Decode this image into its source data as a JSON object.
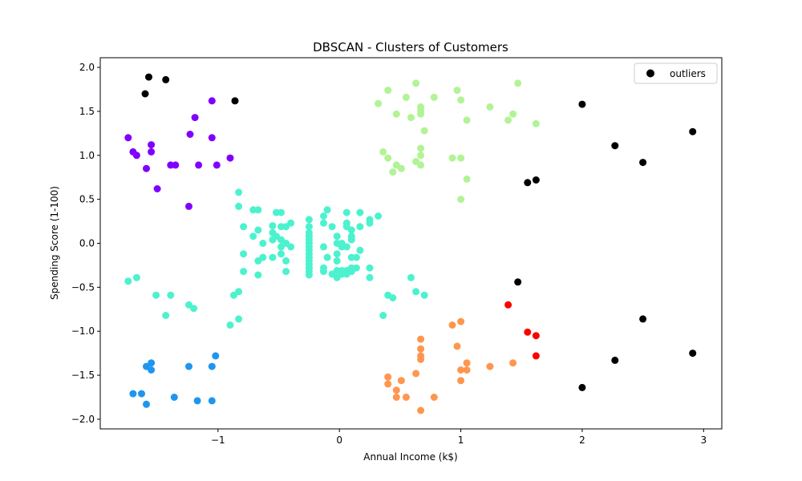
{
  "chart_data": {
    "type": "scatter",
    "title": "DBSCAN - Clusters of Customers",
    "xlabel": "Annual Income (k$)",
    "ylabel": "Spending Score (1-100)",
    "xlim": [
      -1.97,
      3.15
    ],
    "ylim": [
      -2.11,
      2.11
    ],
    "xticks": [
      -1,
      0,
      1,
      2,
      3
    ],
    "xtick_labels": [
      "−1",
      "0",
      "1",
      "2",
      "3"
    ],
    "yticks": [
      -2.0,
      -1.5,
      -1.0,
      -0.5,
      0.0,
      0.5,
      1.0,
      1.5,
      2.0
    ],
    "ytick_labels": [
      "−2.0",
      "−1.5",
      "−1.0",
      "−0.5",
      "0.0",
      "0.5",
      "1.0",
      "1.5",
      "2.0"
    ],
    "grid": false,
    "legend_position": "top-right",
    "legend": [
      "outliers"
    ],
    "series": [
      {
        "name": "outliers",
        "color": "#000000",
        "points": [
          [
            -1.6,
            1.7
          ],
          [
            -1.57,
            1.89
          ],
          [
            -1.43,
            1.86
          ],
          [
            -0.86,
            1.62
          ],
          [
            2.0,
            1.58
          ],
          [
            2.27,
            1.11
          ],
          [
            2.5,
            0.92
          ],
          [
            2.91,
            1.27
          ],
          [
            1.55,
            0.69
          ],
          [
            1.62,
            0.72
          ],
          [
            1.47,
            -0.44
          ],
          [
            2.5,
            -0.86
          ],
          [
            2.91,
            -1.25
          ],
          [
            2.27,
            -1.33
          ],
          [
            2.0,
            -1.64
          ]
        ]
      },
      {
        "color": "#8000ff",
        "points": [
          [
            -1.74,
            1.2
          ],
          [
            -1.7,
            1.04
          ],
          [
            -1.67,
            1.0
          ],
          [
            -1.55,
            1.12
          ],
          [
            -1.55,
            1.04
          ],
          [
            -1.59,
            0.85
          ],
          [
            -1.5,
            0.62
          ],
          [
            -1.39,
            0.89
          ],
          [
            -1.35,
            0.89
          ],
          [
            -1.23,
            1.24
          ],
          [
            -1.19,
            1.43
          ],
          [
            -1.16,
            0.89
          ],
          [
            -1.05,
            1.62
          ],
          [
            -1.05,
            1.2
          ],
          [
            -1.01,
            0.89
          ],
          [
            -0.9,
            0.97
          ],
          [
            -1.24,
            0.42
          ]
        ]
      },
      {
        "color": "#1e96f0",
        "points": [
          [
            -1.7,
            -1.71
          ],
          [
            -1.63,
            -1.71
          ],
          [
            -1.59,
            -1.83
          ],
          [
            -1.59,
            -1.4
          ],
          [
            -1.55,
            -1.36
          ],
          [
            -1.55,
            -1.44
          ],
          [
            -1.36,
            -1.75
          ],
          [
            -1.24,
            -1.4
          ],
          [
            -1.17,
            -1.79
          ],
          [
            -1.05,
            -1.4
          ],
          [
            -1.05,
            -1.79
          ],
          [
            -1.02,
            -1.28
          ]
        ]
      },
      {
        "color": "#4cf2ce",
        "points": [
          [
            -1.74,
            -0.43
          ],
          [
            -1.67,
            -0.39
          ],
          [
            -1.51,
            -0.59
          ],
          [
            -1.43,
            -0.82
          ],
          [
            -1.39,
            -0.59
          ],
          [
            -1.24,
            -0.7
          ],
          [
            -1.2,
            -0.74
          ],
          [
            -0.9,
            -0.93
          ],
          [
            -0.87,
            -0.59
          ],
          [
            -0.83,
            -0.55
          ],
          [
            -0.83,
            -0.86
          ],
          [
            -0.83,
            0.58
          ],
          [
            -0.83,
            0.42
          ],
          [
            -0.79,
            0.19
          ],
          [
            -0.79,
            -0.12
          ],
          [
            -0.79,
            -0.32
          ],
          [
            -0.71,
            0.38
          ],
          [
            -0.71,
            0.08
          ],
          [
            -0.67,
            0.38
          ],
          [
            -0.67,
            0.15
          ],
          [
            -0.67,
            -0.2
          ],
          [
            -0.67,
            -0.36
          ],
          [
            -0.63,
            0.0
          ],
          [
            -0.63,
            -0.16
          ],
          [
            -0.55,
            0.2
          ],
          [
            -0.55,
            0.12
          ],
          [
            -0.55,
            0.04
          ],
          [
            -0.55,
            -0.16
          ],
          [
            -0.52,
            0.35
          ],
          [
            -0.52,
            0.08
          ],
          [
            -0.48,
            0.35
          ],
          [
            -0.48,
            0.19
          ],
          [
            -0.48,
            0.04
          ],
          [
            -0.48,
            -0.04
          ],
          [
            -0.48,
            -0.12
          ],
          [
            -0.44,
            0.19
          ],
          [
            -0.44,
            0.0
          ],
          [
            -0.44,
            -0.2
          ],
          [
            -0.44,
            -0.32
          ],
          [
            -0.4,
            0.23
          ],
          [
            -0.4,
            -0.04
          ],
          [
            -0.25,
            0.27
          ],
          [
            -0.25,
            0.19
          ],
          [
            -0.25,
            0.12
          ],
          [
            -0.25,
            0.08
          ],
          [
            -0.25,
            0.04
          ],
          [
            -0.25,
            0.0
          ],
          [
            -0.25,
            -0.04
          ],
          [
            -0.25,
            -0.08
          ],
          [
            -0.25,
            -0.12
          ],
          [
            -0.25,
            -0.16
          ],
          [
            -0.25,
            -0.2
          ],
          [
            -0.25,
            -0.24
          ],
          [
            -0.25,
            -0.28
          ],
          [
            -0.25,
            -0.32
          ],
          [
            -0.25,
            -0.36
          ],
          [
            -0.13,
            0.31
          ],
          [
            -0.13,
            0.23
          ],
          [
            -0.13,
            -0.04
          ],
          [
            -0.13,
            -0.28
          ],
          [
            -0.13,
            -0.32
          ],
          [
            -0.1,
            0.38
          ],
          [
            -0.1,
            -0.16
          ],
          [
            -0.06,
            0.19
          ],
          [
            -0.06,
            -0.35
          ],
          [
            -0.02,
            0.08
          ],
          [
            -0.02,
            0.0
          ],
          [
            -0.02,
            -0.12
          ],
          [
            -0.02,
            -0.2
          ],
          [
            -0.02,
            -0.31
          ],
          [
            -0.02,
            -0.39
          ],
          [
            0.02,
            0.0
          ],
          [
            0.02,
            -0.04
          ],
          [
            0.02,
            -0.31
          ],
          [
            0.02,
            -0.35
          ],
          [
            0.06,
            0.35
          ],
          [
            0.06,
            0.23
          ],
          [
            0.06,
            0.19
          ],
          [
            0.06,
            -0.04
          ],
          [
            0.06,
            -0.31
          ],
          [
            0.06,
            -0.35
          ],
          [
            0.1,
            0.15
          ],
          [
            0.1,
            0.08
          ],
          [
            0.1,
            0.04
          ],
          [
            0.1,
            -0.16
          ],
          [
            0.1,
            -0.28
          ],
          [
            0.1,
            -0.32
          ],
          [
            0.14,
            -0.16
          ],
          [
            0.14,
            -0.28
          ],
          [
            0.17,
            0.35
          ],
          [
            0.17,
            0.19
          ],
          [
            0.17,
            -0.08
          ],
          [
            0.25,
            0.27
          ],
          [
            0.25,
            0.23
          ],
          [
            0.25,
            -0.28
          ],
          [
            0.25,
            -0.39
          ],
          [
            0.32,
            0.31
          ],
          [
            0.36,
            -0.82
          ],
          [
            0.4,
            -0.59
          ],
          [
            0.44,
            -0.62
          ],
          [
            0.59,
            -0.39
          ],
          [
            0.63,
            -0.55
          ],
          [
            0.7,
            -0.59
          ]
        ]
      },
      {
        "color": "#b2f396",
        "points": [
          [
            0.32,
            1.59
          ],
          [
            0.36,
            1.04
          ],
          [
            0.4,
            1.74
          ],
          [
            0.4,
            0.97
          ],
          [
            0.44,
            0.81
          ],
          [
            0.47,
            1.47
          ],
          [
            0.47,
            0.89
          ],
          [
            0.51,
            0.85
          ],
          [
            0.55,
            1.66
          ],
          [
            0.59,
            1.43
          ],
          [
            0.63,
            1.82
          ],
          [
            0.63,
            0.93
          ],
          [
            0.67,
            1.55
          ],
          [
            0.67,
            1.51
          ],
          [
            0.67,
            1.47
          ],
          [
            0.67,
            1.08
          ],
          [
            0.67,
            1.0
          ],
          [
            0.67,
            0.89
          ],
          [
            0.7,
            1.28
          ],
          [
            0.78,
            1.66
          ],
          [
            0.93,
            0.97
          ],
          [
            0.97,
            1.74
          ],
          [
            1.0,
            1.63
          ],
          [
            1.0,
            0.97
          ],
          [
            1.0,
            0.5
          ],
          [
            1.05,
            1.4
          ],
          [
            1.05,
            0.73
          ],
          [
            1.24,
            1.55
          ],
          [
            1.39,
            1.4
          ],
          [
            1.43,
            1.47
          ],
          [
            1.47,
            1.82
          ],
          [
            1.62,
            1.36
          ]
        ]
      },
      {
        "color": "#ff964f",
        "points": [
          [
            0.4,
            -1.52
          ],
          [
            0.4,
            -1.6
          ],
          [
            0.47,
            -1.67
          ],
          [
            0.47,
            -1.75
          ],
          [
            0.51,
            -1.56
          ],
          [
            0.55,
            -1.75
          ],
          [
            0.63,
            -1.48
          ],
          [
            0.67,
            -1.09
          ],
          [
            0.67,
            -1.2
          ],
          [
            0.67,
            -1.28
          ],
          [
            0.67,
            -1.32
          ],
          [
            0.67,
            -1.9
          ],
          [
            0.78,
            -1.75
          ],
          [
            0.93,
            -0.93
          ],
          [
            0.97,
            -1.17
          ],
          [
            1.0,
            -0.89
          ],
          [
            1.0,
            -1.44
          ],
          [
            1.0,
            -1.56
          ],
          [
            1.05,
            -1.36
          ],
          [
            1.05,
            -1.44
          ],
          [
            1.24,
            -1.4
          ],
          [
            1.43,
            -1.36
          ]
        ]
      },
      {
        "color": "#ff0000",
        "points": [
          [
            1.39,
            -0.7
          ],
          [
            1.55,
            -1.01
          ],
          [
            1.62,
            -1.05
          ],
          [
            1.62,
            -1.28
          ]
        ]
      }
    ]
  }
}
